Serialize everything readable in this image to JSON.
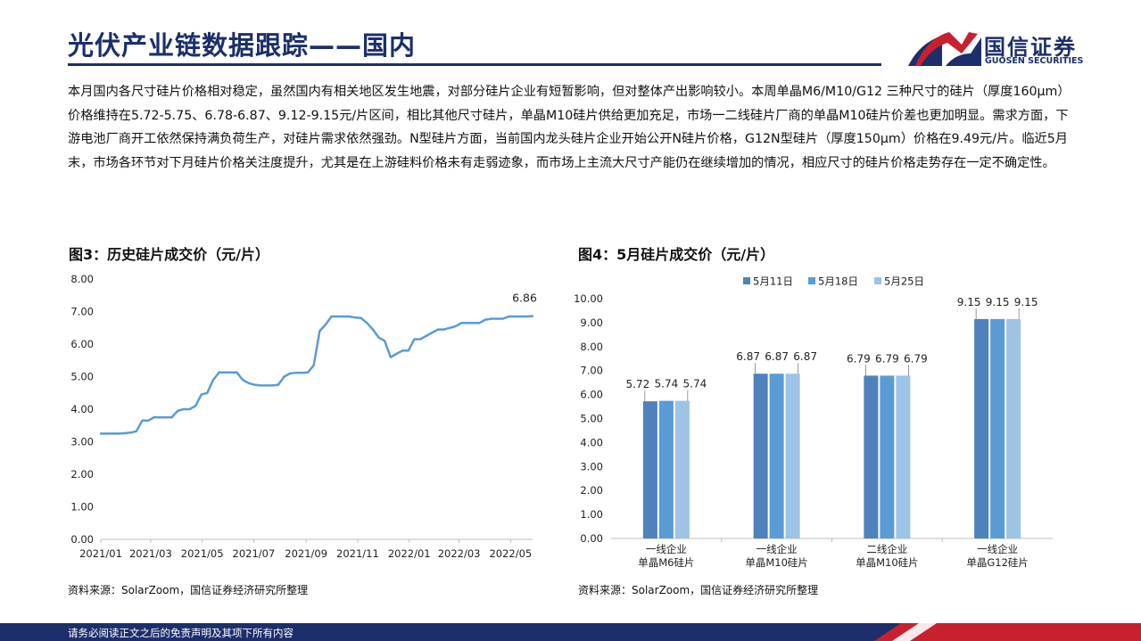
{
  "header": {
    "title": "光伏产业链数据跟踪——国内",
    "logo_cn": "国信证券",
    "logo_en": "GUOSEN SECURITIES"
  },
  "body_text": "本月国内各尺寸硅片价格相对稳定，虽然国内有相关地区发生地震，对部分硅片企业有短暂影响，但对整体产出影响较小。本周单晶M6/M10/G12 三种尺寸的硅片（厚度160μm）价格维持在5.72-5.75、6.78-6.87、9.12-9.15元/片区间，相比其他尺寸硅片，单晶M10硅片供给更加充足，市场一二线硅片厂商的单晶M10硅片价差也更加明显。需求方面，下游电池厂商开工依然保持满负荷生产，对硅片需求依然强劲。N型硅片方面，当前国内龙头硅片企业开始公开N硅片价格，G12N型硅片（厚度150μm）价格在9.49元/片。临近5月末，市场各环节对下月硅片价格关注度提升，尤其是在上游硅料价格未有走弱迹象，而市场上主流大尺寸产能仍在继续增加的情况，相应尺寸的硅片价格走势存在一定不确定性。",
  "figure3": {
    "title": "图3：历史硅片成交价（元/片）",
    "source": "资料来源：SolarZoom，国信证券经济研究所整理"
  },
  "figure4": {
    "title": "图4：5月硅片成交价（元/片）",
    "source": "资料来源：SolarZoom，国信证券经济研究所整理"
  },
  "footer": {
    "disclaimer": "请务必阅读正文之后的免责声明及其项下所有内容"
  },
  "colors": {
    "navy": "#1c2f6b",
    "red": "#c8202f",
    "line": "#5b9bd5",
    "bar1": "#4f81bd",
    "bar2": "#5b9bd5",
    "bar3": "#9dc3e6"
  },
  "chart_data": [
    {
      "type": "line",
      "ylim": [
        0,
        8
      ],
      "yticks": [
        "0.00",
        "1.00",
        "2.00",
        "3.00",
        "4.00",
        "5.00",
        "6.00",
        "7.00",
        "8.00"
      ],
      "xticks": [
        "2021/01",
        "2021/03",
        "2021/05",
        "2021/07",
        "2021/09",
        "2021/11",
        "2022/01",
        "2022/03",
        "2022/05"
      ],
      "grid": false,
      "end_label": "6.86",
      "series": [
        {
          "x": [
            "2021/01/01",
            "2021/01/08",
            "2021/01/15",
            "2021/01/22",
            "2021/01/29",
            "2021/02/05",
            "2021/02/12",
            "2021/02/19",
            "2021/02/26",
            "2021/03/05",
            "2021/03/12",
            "2021/03/19",
            "2021/03/26",
            "2021/04/02",
            "2021/04/09",
            "2021/04/16",
            "2021/04/23",
            "2021/04/30",
            "2021/05/07",
            "2021/05/14",
            "2021/05/21",
            "2021/05/28",
            "2021/06/04",
            "2021/06/11",
            "2021/06/18",
            "2021/06/25",
            "2021/07/02",
            "2021/07/09",
            "2021/07/16",
            "2021/07/23",
            "2021/07/30",
            "2021/08/06",
            "2021/08/13",
            "2021/08/20",
            "2021/08/27",
            "2021/09/03",
            "2021/09/10",
            "2021/09/17",
            "2021/09/24",
            "2021/10/01",
            "2021/10/08",
            "2021/10/15",
            "2021/10/22",
            "2021/10/29",
            "2021/11/05",
            "2021/11/12",
            "2021/11/19",
            "2021/11/26",
            "2021/12/03",
            "2021/12/10",
            "2021/12/17",
            "2021/12/24",
            "2021/12/31",
            "2022/01/07",
            "2022/01/14",
            "2022/01/21",
            "2022/01/28",
            "2022/02/04",
            "2022/02/11",
            "2022/02/18",
            "2022/02/25",
            "2022/03/04",
            "2022/03/11",
            "2022/03/18",
            "2022/03/25",
            "2022/04/01",
            "2022/04/08",
            "2022/04/15",
            "2022/04/22",
            "2022/04/29",
            "2022/05/06",
            "2022/05/13",
            "2022/05/20",
            "2022/05/27"
          ],
          "y": [
            3.25,
            3.25,
            3.25,
            3.25,
            3.26,
            3.28,
            3.32,
            3.65,
            3.65,
            3.75,
            3.75,
            3.75,
            3.75,
            3.95,
            4.0,
            4.0,
            4.1,
            4.45,
            4.5,
            4.9,
            5.13,
            5.13,
            5.13,
            5.13,
            4.9,
            4.8,
            4.75,
            4.73,
            4.73,
            4.73,
            4.75,
            5.0,
            5.1,
            5.12,
            5.12,
            5.13,
            5.35,
            6.4,
            6.6,
            6.85,
            6.85,
            6.85,
            6.85,
            6.82,
            6.8,
            6.65,
            6.45,
            6.2,
            6.1,
            5.6,
            5.7,
            5.8,
            5.8,
            6.15,
            6.15,
            6.25,
            6.35,
            6.45,
            6.45,
            6.5,
            6.55,
            6.65,
            6.65,
            6.65,
            6.65,
            6.75,
            6.78,
            6.78,
            6.78,
            6.85,
            6.85,
            6.85,
            6.85,
            6.86
          ]
        }
      ]
    },
    {
      "type": "bar",
      "ylim": [
        0,
        10
      ],
      "yticks": [
        "0.00",
        "1.00",
        "2.00",
        "3.00",
        "4.00",
        "5.00",
        "6.00",
        "7.00",
        "8.00",
        "9.00",
        "10.00"
      ],
      "legend_position": "top",
      "grid": false,
      "categories": [
        [
          "一线企业",
          "单晶M6硅片"
        ],
        [
          "一线企业",
          "单晶M10硅片"
        ],
        [
          "二线企业",
          "单晶M10硅片"
        ],
        [
          "一线企业",
          "单晶G12硅片"
        ]
      ],
      "series": [
        {
          "name": "5月11日",
          "values": [
            5.72,
            6.87,
            6.79,
            9.15
          ],
          "labels": [
            "5.72",
            "6.87",
            "6.79",
            "9.15"
          ]
        },
        {
          "name": "5月18日",
          "values": [
            5.74,
            6.87,
            6.79,
            9.15
          ],
          "labels": [
            "5.74",
            "6.87",
            "6.79",
            "9.15"
          ]
        },
        {
          "name": "5月25日",
          "values": [
            5.74,
            6.87,
            6.79,
            9.15
          ],
          "labels": [
            "5.74",
            "6.87",
            "6.79",
            "9.15"
          ]
        }
      ]
    }
  ]
}
